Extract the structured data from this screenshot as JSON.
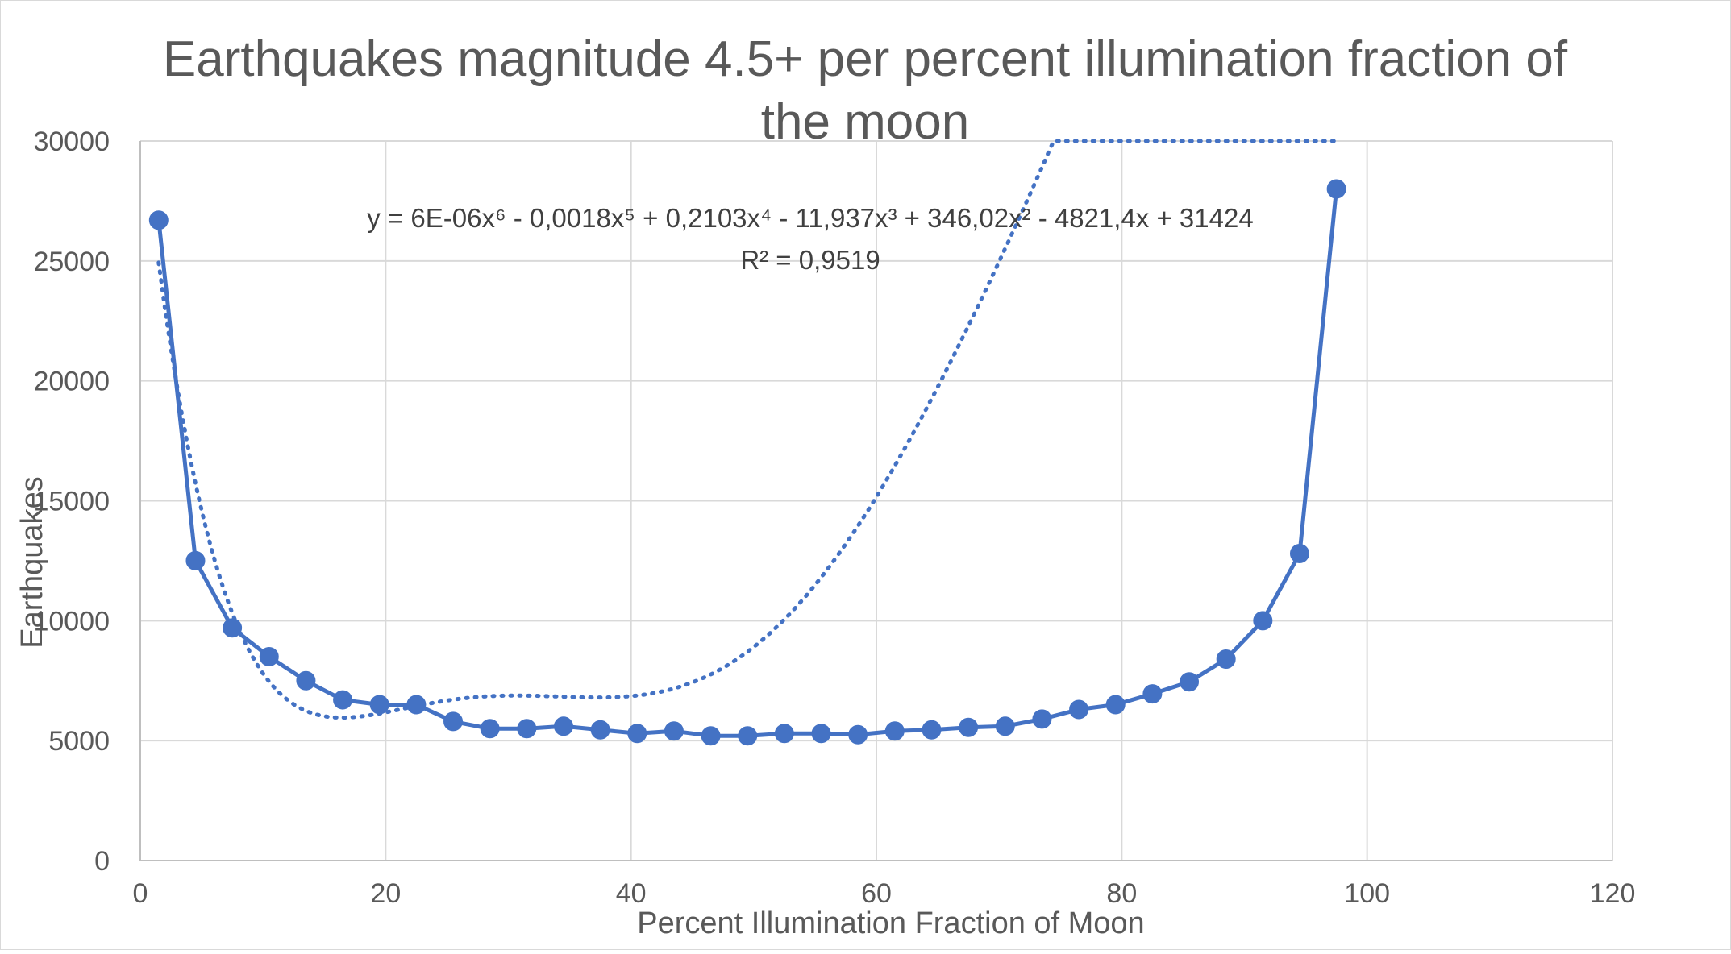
{
  "chart_data": {
    "type": "scatter",
    "title_lines": [
      "Earthquakes magnitude 4.5+ per percent illumination fraction of",
      "the moon"
    ],
    "xlabel": "Percent Illumination Fraction of Moon",
    "ylabel": "Earthquakes",
    "xlim": [
      0,
      120
    ],
    "ylim": [
      0,
      30000
    ],
    "x_ticks": [
      0,
      20,
      40,
      60,
      80,
      100,
      120
    ],
    "y_ticks": [
      0,
      5000,
      10000,
      15000,
      20000,
      25000,
      30000
    ],
    "grid": true,
    "legend": "none",
    "series": [
      {
        "color": "#4472C4",
        "marker": "circle",
        "x": [
          1.5,
          4.5,
          7.5,
          10.5,
          13.5,
          16.5,
          19.5,
          22.5,
          25.5,
          28.5,
          31.5,
          34.5,
          37.5,
          40.5,
          43.5,
          46.5,
          49.5,
          52.5,
          55.5,
          58.5,
          61.5,
          64.5,
          67.5,
          70.5,
          73.5,
          76.5,
          79.5,
          82.5,
          85.5,
          88.5,
          91.5,
          94.5,
          97.5
        ],
        "y": [
          26700,
          12500,
          9700,
          8500,
          7500,
          6700,
          6500,
          6500,
          5800,
          5500,
          5500,
          5600,
          5450,
          5300,
          5400,
          5200,
          5200,
          5300,
          5300,
          5250,
          5400,
          5450,
          5550,
          5600,
          5900,
          6300,
          6500,
          6950,
          7450,
          8400,
          10000,
          12800,
          28000
        ]
      }
    ],
    "trendline": {
      "type": "polynomial",
      "order": 6,
      "style": "dotted",
      "color": "#4472C4",
      "coefficients": [
        31424,
        -4821.4,
        346.02,
        -11.937,
        0.2103,
        -0.0018,
        6e-06
      ],
      "equation_text": "y = 6E-06x⁶ - 0,0018x⁵ + 0,2103x⁴ - 11,937x³ + 346,02x² - 4821,4x + 31424",
      "r2_text": "R² = 0,9519"
    }
  }
}
